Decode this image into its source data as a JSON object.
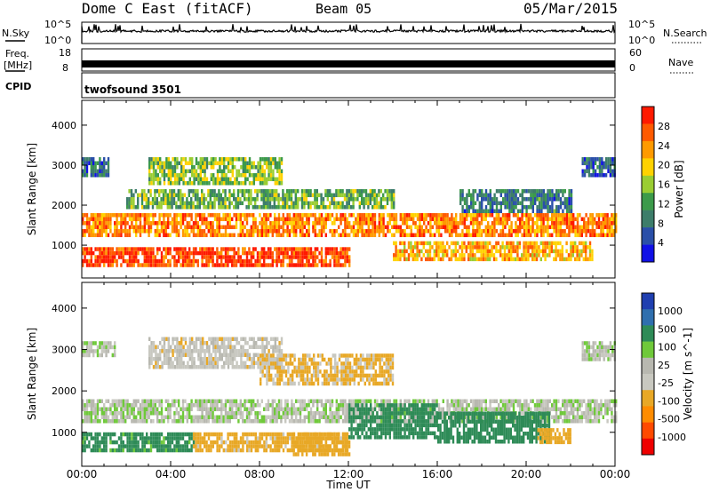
{
  "header": {
    "title": "Dome C East (fitACF)",
    "beam": "Beam 05",
    "date": "05/Mar/2015"
  },
  "status_panels": {
    "nsky_label": "N.Sky",
    "nsearch_label": "N.Search",
    "nsky_ticks": [
      "10^5",
      "10^0"
    ],
    "freq_label": "Freq.",
    "freq_unit": "[MHz]",
    "freq_ticks": [
      "18",
      "8"
    ],
    "nave_label": "Nave",
    "nave_ticks": [
      "60",
      "0"
    ],
    "cpid_label": "CPID",
    "cpid_value": "twofsound 3501"
  },
  "colors": {
    "power_scale": [
      "#1010e6",
      "#2a4fa8",
      "#3d7d6a",
      "#3c9a4a",
      "#9acd32",
      "#ffd200",
      "#ff9a00",
      "#ff5a00",
      "#ff1a00"
    ],
    "velocity_scale": [
      "#ee0000",
      "#ff4a00",
      "#ff8c00",
      "#e8a826",
      "#c8c8c0",
      "#b8b8b0",
      "#6fc93a",
      "#2e8b57",
      "#2f6fae",
      "#1f3fb0"
    ]
  },
  "chart_data": [
    {
      "type": "heatmap",
      "title": "",
      "quantity": "Power",
      "ylabel": "Slant Range [km]",
      "xlabel": "Time UT",
      "x_ticks": [
        "00:00",
        "04:00",
        "08:00",
        "12:00",
        "16:00",
        "20:00",
        "00:00"
      ],
      "y_ticks": [
        "1000",
        "2000",
        "3000",
        "4000"
      ],
      "ylim": [
        180,
        4620
      ],
      "colorbar_label": "Power [dB]",
      "colorbar_ticks": [
        "4",
        "8",
        "12",
        "16",
        "20",
        "24",
        "28"
      ],
      "bands": [
        {
          "x": [
            0,
            24
          ],
          "y": [
            1300,
            1800
          ],
          "value": 24
        },
        {
          "x": [
            0,
            12
          ],
          "y": [
            500,
            950
          ],
          "value": 28
        },
        {
          "x": [
            2,
            14
          ],
          "y": [
            1950,
            2400
          ],
          "value": 14
        },
        {
          "x": [
            3,
            9
          ],
          "y": [
            2600,
            3200
          ],
          "value": 16
        },
        {
          "x": [
            0,
            1.2
          ],
          "y": [
            2800,
            3200
          ],
          "value": 8
        },
        {
          "x": [
            14,
            23
          ],
          "y": [
            700,
            1100
          ],
          "value": 22
        },
        {
          "x": [
            17,
            22
          ],
          "y": [
            1900,
            2400
          ],
          "value": 10
        },
        {
          "x": [
            22.5,
            24
          ],
          "y": [
            2800,
            3200
          ],
          "value": 8
        }
      ]
    },
    {
      "type": "heatmap",
      "title": "",
      "quantity": "Velocity",
      "ylabel": "Slant Range [km]",
      "xlabel": "Time UT",
      "x_ticks": [
        "00:00",
        "04:00",
        "08:00",
        "12:00",
        "16:00",
        "20:00",
        "00:00"
      ],
      "y_ticks": [
        "1000",
        "2000",
        "3000",
        "4000"
      ],
      "ylim": [
        180,
        4620
      ],
      "colorbar_label": "Velocity [m s^-1]",
      "colorbar_ticks": [
        "1000",
        "500",
        "100",
        "25",
        "-25",
        "-100",
        "-500",
        "-1000"
      ],
      "bands": [
        {
          "x": [
            0,
            24
          ],
          "y": [
            1300,
            1800
          ],
          "value": 0
        },
        {
          "x": [
            0,
            5
          ],
          "y": [
            600,
            1000
          ],
          "value": 150
        },
        {
          "x": [
            5,
            12
          ],
          "y": [
            600,
            1000
          ],
          "value": -150
        },
        {
          "x": [
            9.5,
            12
          ],
          "y": [
            500,
            1000
          ],
          "value": -300
        },
        {
          "x": [
            12,
            16
          ],
          "y": [
            900,
            1700
          ],
          "value": 200
        },
        {
          "x": [
            16,
            21
          ],
          "y": [
            800,
            1500
          ],
          "value": 300
        },
        {
          "x": [
            20.5,
            22
          ],
          "y": [
            800,
            1100
          ],
          "value": -200
        },
        {
          "x": [
            3,
            9
          ],
          "y": [
            2600,
            3300
          ],
          "value": -50
        },
        {
          "x": [
            8,
            14
          ],
          "y": [
            2200,
            2900
          ],
          "value": -120
        },
        {
          "x": [
            0,
            1.5
          ],
          "y": [
            2900,
            3200
          ],
          "value": 0
        },
        {
          "x": [
            22.5,
            24
          ],
          "y": [
            2800,
            3200
          ],
          "value": 0
        }
      ]
    }
  ]
}
